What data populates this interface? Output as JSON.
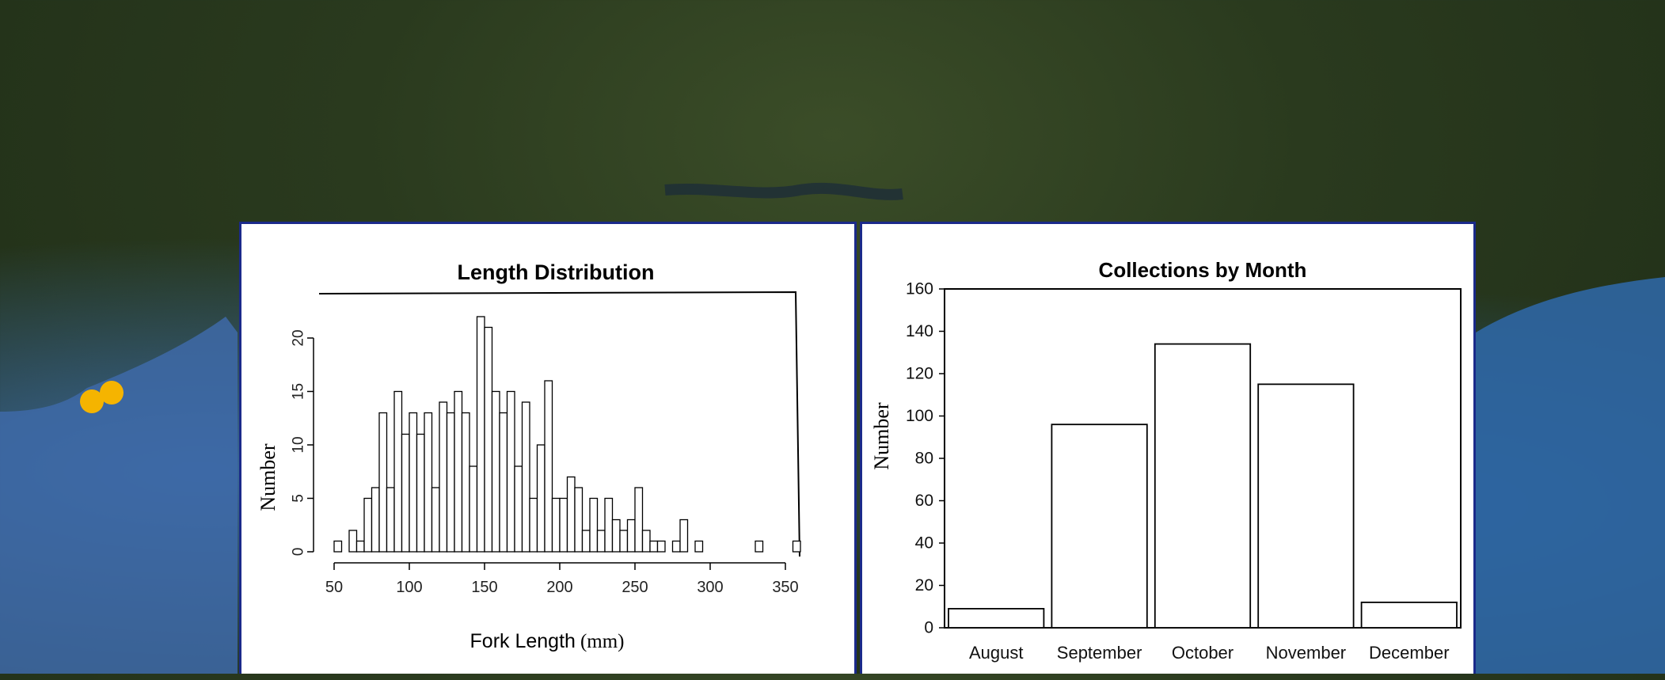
{
  "map": {
    "water_color": "#3f6fae",
    "land_color": "#2f4222",
    "marker_color": "#f5b400",
    "markers": [
      {
        "name": "sample-site-1"
      },
      {
        "name": "sample-site-2"
      }
    ]
  },
  "chart_data": [
    {
      "type": "bar",
      "title": "Length Distribution",
      "xlabel": "Fork Length",
      "xlabel_unit": "(mm)",
      "ylabel": "Number",
      "bin_width": 5,
      "x_ticks": [
        50,
        100,
        150,
        200,
        250,
        300,
        350
      ],
      "y_ticks": [
        0,
        5,
        10,
        15,
        20
      ],
      "xlim": [
        40,
        360
      ],
      "ylim": [
        0,
        24
      ],
      "bins": [
        {
          "start": 50,
          "count": 1
        },
        {
          "start": 55,
          "count": 0
        },
        {
          "start": 60,
          "count": 2
        },
        {
          "start": 65,
          "count": 1
        },
        {
          "start": 70,
          "count": 5
        },
        {
          "start": 75,
          "count": 6
        },
        {
          "start": 80,
          "count": 13
        },
        {
          "start": 85,
          "count": 6
        },
        {
          "start": 90,
          "count": 15
        },
        {
          "start": 95,
          "count": 11
        },
        {
          "start": 100,
          "count": 13
        },
        {
          "start": 105,
          "count": 11
        },
        {
          "start": 110,
          "count": 13
        },
        {
          "start": 115,
          "count": 6
        },
        {
          "start": 120,
          "count": 14
        },
        {
          "start": 125,
          "count": 13
        },
        {
          "start": 130,
          "count": 15
        },
        {
          "start": 135,
          "count": 13
        },
        {
          "start": 140,
          "count": 8
        },
        {
          "start": 145,
          "count": 22
        },
        {
          "start": 150,
          "count": 21
        },
        {
          "start": 155,
          "count": 15
        },
        {
          "start": 160,
          "count": 13
        },
        {
          "start": 165,
          "count": 15
        },
        {
          "start": 170,
          "count": 8
        },
        {
          "start": 175,
          "count": 14
        },
        {
          "start": 180,
          "count": 5
        },
        {
          "start": 185,
          "count": 10
        },
        {
          "start": 190,
          "count": 16
        },
        {
          "start": 195,
          "count": 5
        },
        {
          "start": 200,
          "count": 5
        },
        {
          "start": 205,
          "count": 7
        },
        {
          "start": 210,
          "count": 6
        },
        {
          "start": 215,
          "count": 2
        },
        {
          "start": 220,
          "count": 5
        },
        {
          "start": 225,
          "count": 2
        },
        {
          "start": 230,
          "count": 5
        },
        {
          "start": 235,
          "count": 3
        },
        {
          "start": 240,
          "count": 2
        },
        {
          "start": 245,
          "count": 3
        },
        {
          "start": 250,
          "count": 6
        },
        {
          "start": 255,
          "count": 2
        },
        {
          "start": 260,
          "count": 1
        },
        {
          "start": 265,
          "count": 1
        },
        {
          "start": 270,
          "count": 0
        },
        {
          "start": 275,
          "count": 1
        },
        {
          "start": 280,
          "count": 3
        },
        {
          "start": 285,
          "count": 0
        },
        {
          "start": 290,
          "count": 1
        },
        {
          "start": 330,
          "count": 1
        },
        {
          "start": 355,
          "count": 1
        }
      ]
    },
    {
      "type": "bar",
      "title": "Collections by Month",
      "xlabel": "",
      "ylabel": "Number",
      "categories": [
        "August",
        "September",
        "October",
        "November",
        "December"
      ],
      "values": [
        9,
        96,
        134,
        115,
        12
      ],
      "y_ticks": [
        0,
        20,
        40,
        60,
        80,
        100,
        120,
        140,
        160
      ],
      "ylim": [
        0,
        160
      ]
    }
  ]
}
